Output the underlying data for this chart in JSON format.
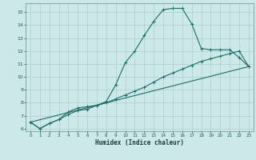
{
  "xlabel": "Humidex (Indice chaleur)",
  "background_color": "#cce8e8",
  "grid_color": "#b0cccc",
  "line_color": "#1a6e6a",
  "xlim": [
    -0.5,
    23.5
  ],
  "ylim": [
    5.8,
    15.7
  ],
  "xticks": [
    0,
    1,
    2,
    3,
    4,
    5,
    6,
    7,
    8,
    9,
    10,
    11,
    12,
    13,
    14,
    15,
    16,
    17,
    18,
    19,
    20,
    21,
    22,
    23
  ],
  "yticks": [
    6,
    7,
    8,
    9,
    10,
    11,
    12,
    13,
    14,
    15
  ],
  "series1_x": [
    0,
    1,
    2,
    3,
    4,
    5,
    6,
    7,
    8,
    9,
    10,
    11,
    12,
    13,
    14,
    15,
    16,
    17,
    18,
    19,
    20,
    21,
    22,
    23
  ],
  "series1_y": [
    6.5,
    6.0,
    6.4,
    6.7,
    7.3,
    7.6,
    7.7,
    7.8,
    8.1,
    9.4,
    11.1,
    12.0,
    13.2,
    14.3,
    15.2,
    15.3,
    15.3,
    14.1,
    12.2,
    12.1,
    12.1,
    12.1,
    11.5,
    10.8
  ],
  "series2_x": [
    0,
    1,
    2,
    3,
    4,
    5,
    6,
    7,
    8,
    9,
    10,
    11,
    12,
    13,
    14,
    15,
    16,
    17,
    18,
    19,
    20,
    21,
    22,
    23
  ],
  "series2_y": [
    6.5,
    6.0,
    6.4,
    6.7,
    7.1,
    7.4,
    7.5,
    7.8,
    8.0,
    8.3,
    8.6,
    8.9,
    9.2,
    9.6,
    10.0,
    10.3,
    10.6,
    10.9,
    11.2,
    11.4,
    11.6,
    11.8,
    12.0,
    10.8
  ],
  "series3_x": [
    0,
    23
  ],
  "series3_y": [
    6.5,
    10.8
  ]
}
